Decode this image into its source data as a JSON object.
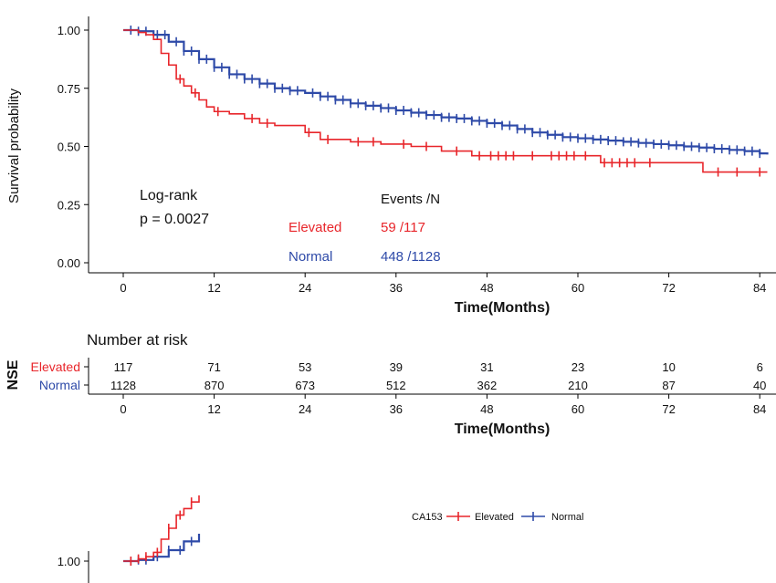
{
  "chart_data": [
    {
      "type": "line",
      "subtype": "kaplan-meier",
      "ylabel": "Survival probability",
      "xlabel": "Time(Months)",
      "xlim": [
        0,
        85
      ],
      "ylim": [
        0,
        1
      ],
      "x_ticks": [
        0,
        12,
        24,
        36,
        48,
        60,
        72,
        84
      ],
      "y_ticks": [
        "0.00",
        "0.25",
        "0.50",
        "0.75",
        "1.00"
      ],
      "y_tick_values": [
        0,
        0.25,
        0.5,
        0.75,
        1
      ],
      "annotation": {
        "line1": "Log-rank",
        "line2": "p = 0.0027"
      },
      "events_header": "Events /N",
      "series": [
        {
          "name": "Elevated",
          "color": "#e8262b",
          "events": "59 /117",
          "points": [
            [
              0,
              1.0
            ],
            [
              1,
              1.0
            ],
            [
              2,
              0.99
            ],
            [
              3,
              0.98
            ],
            [
              4,
              0.96
            ],
            [
              5,
              0.9
            ],
            [
              6,
              0.85
            ],
            [
              7,
              0.79
            ],
            [
              8,
              0.76
            ],
            [
              9,
              0.73
            ],
            [
              10,
              0.7
            ],
            [
              11,
              0.67
            ],
            [
              12,
              0.65
            ],
            [
              14,
              0.64
            ],
            [
              16,
              0.62
            ],
            [
              18,
              0.6
            ],
            [
              20,
              0.59
            ],
            [
              22,
              0.59
            ],
            [
              24,
              0.56
            ],
            [
              26,
              0.53
            ],
            [
              28,
              0.53
            ],
            [
              30,
              0.52
            ],
            [
              34,
              0.51
            ],
            [
              38,
              0.5
            ],
            [
              42,
              0.48
            ],
            [
              46,
              0.46
            ],
            [
              50,
              0.46
            ],
            [
              54,
              0.46
            ],
            [
              58,
              0.46
            ],
            [
              62,
              0.46
            ],
            [
              63,
              0.43
            ],
            [
              66,
              0.43
            ],
            [
              70,
              0.43
            ],
            [
              76,
              0.43
            ],
            [
              76.5,
              0.39
            ],
            [
              80,
              0.39
            ],
            [
              85,
              0.39
            ]
          ],
          "censors": [
            7.5,
            9.5,
            12.5,
            17,
            19,
            24.5,
            27,
            31,
            33,
            37,
            40,
            44,
            47,
            48.5,
            49.5,
            50.5,
            51.5,
            54,
            56.5,
            57.5,
            58.5,
            59.5,
            61,
            63.5,
            64.5,
            65.5,
            66.5,
            67.5,
            69.5,
            78.5,
            81,
            84
          ]
        },
        {
          "name": "Normal",
          "color": "#2e4aa8",
          "events": "448 /1128",
          "points": [
            [
              0,
              1.0
            ],
            [
              2,
              0.995
            ],
            [
              4,
              0.98
            ],
            [
              6,
              0.95
            ],
            [
              8,
              0.91
            ],
            [
              10,
              0.875
            ],
            [
              12,
              0.84
            ],
            [
              14,
              0.81
            ],
            [
              16,
              0.79
            ],
            [
              18,
              0.77
            ],
            [
              20,
              0.75
            ],
            [
              22,
              0.74
            ],
            [
              24,
              0.73
            ],
            [
              26,
              0.715
            ],
            [
              28,
              0.7
            ],
            [
              30,
              0.685
            ],
            [
              32,
              0.675
            ],
            [
              34,
              0.665
            ],
            [
              36,
              0.655
            ],
            [
              38,
              0.645
            ],
            [
              40,
              0.635
            ],
            [
              42,
              0.625
            ],
            [
              44,
              0.62
            ],
            [
              46,
              0.61
            ],
            [
              48,
              0.6
            ],
            [
              50,
              0.59
            ],
            [
              52,
              0.575
            ],
            [
              54,
              0.56
            ],
            [
              56,
              0.55
            ],
            [
              58,
              0.54
            ],
            [
              60,
              0.535
            ],
            [
              62,
              0.53
            ],
            [
              64,
              0.525
            ],
            [
              66,
              0.52
            ],
            [
              68,
              0.515
            ],
            [
              70,
              0.51
            ],
            [
              72,
              0.505
            ],
            [
              74,
              0.5
            ],
            [
              76,
              0.495
            ],
            [
              78,
              0.49
            ],
            [
              80,
              0.485
            ],
            [
              82,
              0.48
            ],
            [
              84,
              0.47
            ],
            [
              85,
              0.465
            ]
          ],
          "censors": [
            1,
            2,
            3,
            4.5,
            5.5,
            7,
            8,
            9,
            10,
            11,
            12,
            13,
            14,
            15,
            16,
            17,
            18,
            19,
            20,
            21,
            22,
            23,
            25,
            26,
            27,
            28,
            29,
            30,
            31,
            32,
            33,
            34,
            35,
            36,
            37,
            38,
            39,
            40,
            41,
            42,
            43,
            44,
            45,
            46,
            47,
            48,
            49,
            50,
            51,
            52,
            53,
            54,
            55,
            56,
            57,
            58,
            59,
            60,
            61,
            62,
            63,
            64,
            65,
            66,
            67,
            68,
            69,
            70,
            71,
            72,
            73,
            74,
            75,
            76,
            77,
            78,
            79,
            80,
            81,
            82,
            83,
            84
          ]
        }
      ]
    },
    {
      "type": "table",
      "title": "Number at risk",
      "ylabel": "NSE",
      "xlabel": "Time(Months)",
      "x_ticks": [
        0,
        12,
        24,
        36,
        48,
        60,
        72,
        84
      ],
      "rows": [
        {
          "name": "Elevated",
          "color": "#e8262b",
          "values": [
            "117",
            "71",
            "53",
            "39",
            "31",
            "23",
            "10",
            "6"
          ]
        },
        {
          "name": "Normal",
          "color": "#2e4aa8",
          "values": [
            "1128",
            "870",
            "673",
            "512",
            "362",
            "210",
            "87",
            "40"
          ]
        }
      ]
    },
    {
      "type": "line",
      "subtype": "kaplan-meier-partial",
      "legend_title": "CA153",
      "legend": [
        {
          "name": "Elevated",
          "color": "#e8262b"
        },
        {
          "name": "Normal",
          "color": "#2e4aa8"
        }
      ],
      "y_ticks": [
        "1.00"
      ]
    }
  ]
}
